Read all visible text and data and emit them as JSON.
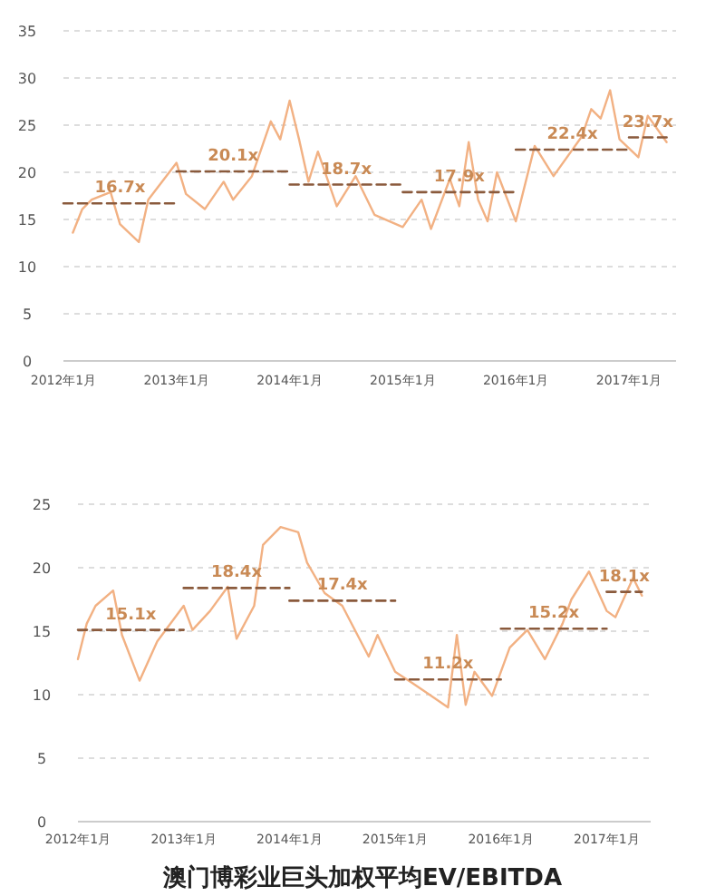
{
  "chart_data": [
    {
      "type": "line",
      "xlim": [
        "2012-01",
        "2017-06"
      ],
      "ylim": [
        0,
        35
      ],
      "yticks": [
        0,
        5,
        10,
        15,
        20,
        25,
        30,
        35
      ],
      "grid": "y",
      "xticks": [
        {
          "value": "2012-01",
          "label": "2012年1月"
        },
        {
          "value": "2013-01",
          "label": "2013年1月"
        },
        {
          "value": "2014-01",
          "label": "2014年1月"
        },
        {
          "value": "2015-01",
          "label": "2015年1月"
        },
        {
          "value": "2016-01",
          "label": "2016年1月"
        },
        {
          "value": "2017-01",
          "label": "2017年1月"
        }
      ],
      "series": [
        {
          "color": "#f2b183",
          "line_style": "solid",
          "x": [
            "2012-02",
            "2012-03",
            "2012-04",
            "2012-06",
            "2012-07",
            "2012-09",
            "2012-10",
            "2013-01",
            "2013-02",
            "2013-04",
            "2013-06",
            "2013-07",
            "2013-09",
            "2013-11",
            "2013-12",
            "2014-01",
            "2014-02",
            "2014-03",
            "2014-04",
            "2014-06",
            "2014-08",
            "2014-10",
            "2015-01",
            "2015-03",
            "2015-04",
            "2015-06",
            "2015-07",
            "2015-08",
            "2015-09",
            "2015-10",
            "2015-11",
            "2016-01",
            "2016-03",
            "2016-05",
            "2016-08",
            "2016-09",
            "2016-10",
            "2016-11",
            "2016-12",
            "2017-02",
            "2017-03",
            "2017-05"
          ],
          "values": [
            13.6,
            16.1,
            17.1,
            17.9,
            14.5,
            12.6,
            17.1,
            21.0,
            17.7,
            16.1,
            19.0,
            17.1,
            19.6,
            25.4,
            23.5,
            27.6,
            23.5,
            19.0,
            22.2,
            16.4,
            19.6,
            15.5,
            14.2,
            17.1,
            14.0,
            19.3,
            16.4,
            23.2,
            17.1,
            14.8,
            20.0,
            14.8,
            22.8,
            19.6,
            23.8,
            26.7,
            25.7,
            28.7,
            23.5,
            21.6,
            26.0,
            23.2
          ]
        },
        {
          "type": "line",
          "color": "#8a5a3c",
          "line_style": "dashed",
          "x": [
            "2012-01",
            "2013-01"
          ],
          "values": [
            16.7,
            16.7
          ]
        },
        {
          "type": "line",
          "color": "#8a5a3c",
          "line_style": "dashed",
          "x": [
            "2013-01",
            "2014-01"
          ],
          "values": [
            20.1,
            20.1
          ]
        },
        {
          "type": "line",
          "color": "#8a5a3c",
          "line_style": "dashed",
          "x": [
            "2014-01",
            "2015-01"
          ],
          "values": [
            18.7,
            18.7
          ]
        },
        {
          "type": "line",
          "color": "#8a5a3c",
          "line_style": "dashed",
          "x": [
            "2015-01",
            "2016-01"
          ],
          "values": [
            17.9,
            17.9
          ]
        },
        {
          "type": "line",
          "color": "#8a5a3c",
          "line_style": "dashed",
          "x": [
            "2016-01",
            "2017-01"
          ],
          "values": [
            22.4,
            22.4
          ]
        },
        {
          "type": "line",
          "color": "#8a5a3c",
          "line_style": "dashed",
          "x": [
            "2017-01",
            "2017-05"
          ],
          "values": [
            23.7,
            23.7
          ]
        }
      ],
      "annotations": [
        {
          "text": "16.7x",
          "x": "2012-07",
          "y": 16.7
        },
        {
          "text": "20.1x",
          "x": "2013-07",
          "y": 20.1
        },
        {
          "text": "18.7x",
          "x": "2014-07",
          "y": 18.7
        },
        {
          "text": "17.9x",
          "x": "2015-07",
          "y": 17.9
        },
        {
          "text": "22.4x",
          "x": "2016-07",
          "y": 22.4
        },
        {
          "text": "23.7x",
          "x": "2017-03",
          "y": 23.7
        }
      ]
    },
    {
      "type": "line",
      "title": "澳门博彩业巨头加权平均EV/EBITDA",
      "xlim": [
        "2012-01",
        "2017-06"
      ],
      "ylim": [
        0,
        25
      ],
      "yticks": [
        0,
        5,
        10,
        15,
        20,
        25
      ],
      "grid": "y",
      "xticks": [
        {
          "value": "2012-01",
          "label": "2012年1月"
        },
        {
          "value": "2013-01",
          "label": "2013年1月"
        },
        {
          "value": "2014-01",
          "label": "2014年1月"
        },
        {
          "value": "2015-01",
          "label": "2015年1月"
        },
        {
          "value": "2016-01",
          "label": "2016年1月"
        },
        {
          "value": "2017-01",
          "label": "2017年1月"
        }
      ],
      "series": [
        {
          "color": "#f2b183",
          "line_style": "solid",
          "x": [
            "2012-01",
            "2012-02",
            "2012-03",
            "2012-05",
            "2012-06",
            "2012-08",
            "2012-10",
            "2013-01",
            "2013-02",
            "2013-04",
            "2013-06",
            "2013-07",
            "2013-09",
            "2013-10",
            "2013-12",
            "2014-02",
            "2014-03",
            "2014-05",
            "2014-07",
            "2014-10",
            "2014-11",
            "2015-01",
            "2015-03",
            "2015-07",
            "2015-08",
            "2015-09",
            "2015-10",
            "2015-12",
            "2016-02",
            "2016-04",
            "2016-06",
            "2016-08",
            "2016-09",
            "2016-11",
            "2017-01",
            "2017-02",
            "2017-04",
            "2017-05"
          ],
          "values": [
            12.8,
            15.6,
            17.0,
            18.2,
            14.7,
            11.1,
            14.2,
            17.0,
            15.1,
            16.6,
            18.5,
            14.4,
            17.0,
            21.8,
            23.2,
            22.8,
            20.4,
            18.0,
            17.0,
            13.0,
            14.7,
            11.8,
            10.9,
            9.0,
            14.7,
            9.2,
            11.8,
            9.9,
            13.7,
            15.1,
            12.8,
            15.6,
            17.5,
            19.7,
            16.6,
            16.1,
            19.2,
            17.8
          ]
        },
        {
          "type": "line",
          "color": "#8a5a3c",
          "line_style": "dashed",
          "x": [
            "2012-01",
            "2013-01"
          ],
          "values": [
            15.1,
            15.1
          ]
        },
        {
          "type": "line",
          "color": "#8a5a3c",
          "line_style": "dashed",
          "x": [
            "2013-01",
            "2014-01"
          ],
          "values": [
            18.4,
            18.4
          ]
        },
        {
          "type": "line",
          "color": "#8a5a3c",
          "line_style": "dashed",
          "x": [
            "2014-01",
            "2015-01"
          ],
          "values": [
            17.4,
            17.4
          ]
        },
        {
          "type": "line",
          "color": "#8a5a3c",
          "line_style": "dashed",
          "x": [
            "2015-01",
            "2016-01"
          ],
          "values": [
            11.2,
            11.2
          ]
        },
        {
          "type": "line",
          "color": "#8a5a3c",
          "line_style": "dashed",
          "x": [
            "2016-01",
            "2017-01"
          ],
          "values": [
            15.2,
            15.2
          ]
        },
        {
          "type": "line",
          "color": "#8a5a3c",
          "line_style": "dashed",
          "x": [
            "2017-01",
            "2017-05"
          ],
          "values": [
            18.1,
            18.1
          ]
        }
      ],
      "annotations": [
        {
          "text": "15.1x",
          "x": "2012-07",
          "y": 15.1
        },
        {
          "text": "18.4x",
          "x": "2013-07",
          "y": 18.4
        },
        {
          "text": "17.4x",
          "x": "2014-07",
          "y": 17.4
        },
        {
          "text": "11.2x",
          "x": "2015-07",
          "y": 11.2
        },
        {
          "text": "15.2x",
          "x": "2016-07",
          "y": 15.2
        },
        {
          "text": "18.1x",
          "x": "2017-03",
          "y": 18.1
        }
      ]
    }
  ]
}
